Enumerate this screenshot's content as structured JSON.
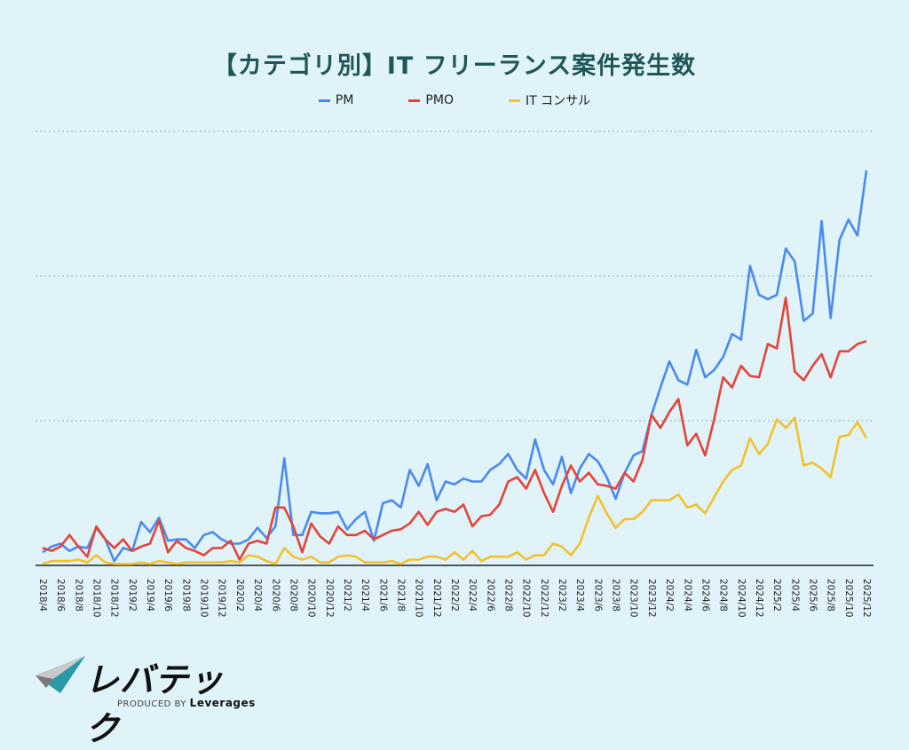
{
  "chart_data": {
    "type": "line",
    "title": "【カテゴリ別】IT フリーランス案件発生数",
    "xlabel": "",
    "ylabel": "",
    "ylim": [
      0,
      3
    ],
    "grid": true,
    "legend_position": "top-center",
    "x_tick_labels": [
      "2018/4",
      "2018/6",
      "2018/8",
      "2018/10",
      "2018/12",
      "2019/2",
      "2019/4",
      "2019/6",
      "2019/8",
      "2019/10",
      "2019/12",
      "2020/2",
      "2020/4",
      "2020/6",
      "2020/8",
      "2020/10",
      "2020/12",
      "2021/2",
      "2021/4",
      "2021/6",
      "2021/8",
      "2021/10",
      "2021/12",
      "2022/2",
      "2022/4",
      "2022/6",
      "2022/8",
      "2022/10",
      "2022/12",
      "2023/2",
      "2023/4",
      "2023/6",
      "2023/8",
      "2023/10",
      "2023/12",
      "2024/2",
      "2024/4",
      "2024/6",
      "2024/8",
      "2024/10",
      "2024/12",
      "2025/2",
      "2025/4",
      "2025/6",
      "2025/8",
      "2025/10",
      "2025/12"
    ],
    "series": [
      {
        "name": "PM",
        "color": "#4a8af0",
        "values": [
          0.09,
          0.13,
          0.15,
          0.1,
          0.13,
          0.12,
          0.26,
          0.18,
          0.03,
          0.12,
          0.1,
          0.3,
          0.23,
          0.33,
          0.17,
          0.18,
          0.18,
          0.12,
          0.21,
          0.23,
          0.18,
          0.15,
          0.15,
          0.18,
          0.26,
          0.19,
          0.27,
          0.74,
          0.21,
          0.21,
          0.37,
          0.36,
          0.36,
          0.37,
          0.25,
          0.32,
          0.37,
          0.17,
          0.43,
          0.45,
          0.4,
          0.66,
          0.55,
          0.7,
          0.45,
          0.58,
          0.56,
          0.6,
          0.58,
          0.58,
          0.66,
          0.7,
          0.77,
          0.66,
          0.6,
          0.87,
          0.66,
          0.56,
          0.75,
          0.5,
          0.67,
          0.77,
          0.72,
          0.61,
          0.46,
          0.64,
          0.76,
          0.79,
          1.04,
          1.23,
          1.41,
          1.28,
          1.25,
          1.49,
          1.3,
          1.35,
          1.44,
          1.6,
          1.56,
          2.07,
          1.87,
          1.84,
          1.87,
          2.19,
          2.1,
          1.69,
          1.74,
          2.38,
          1.71,
          2.25,
          2.39,
          2.28,
          2.73
        ]
      },
      {
        "name": "PMO",
        "color": "#e5443a",
        "values": [
          0.12,
          0.1,
          0.13,
          0.21,
          0.13,
          0.06,
          0.27,
          0.18,
          0.12,
          0.18,
          0.1,
          0.13,
          0.15,
          0.31,
          0.09,
          0.17,
          0.12,
          0.1,
          0.07,
          0.12,
          0.12,
          0.17,
          0.04,
          0.15,
          0.17,
          0.15,
          0.4,
          0.4,
          0.27,
          0.09,
          0.29,
          0.2,
          0.15,
          0.27,
          0.21,
          0.21,
          0.24,
          0.18,
          0.21,
          0.24,
          0.25,
          0.29,
          0.37,
          0.28,
          0.37,
          0.39,
          0.37,
          0.42,
          0.27,
          0.34,
          0.35,
          0.42,
          0.58,
          0.61,
          0.53,
          0.66,
          0.5,
          0.37,
          0.55,
          0.69,
          0.58,
          0.64,
          0.56,
          0.55,
          0.53,
          0.64,
          0.58,
          0.73,
          1.04,
          0.95,
          1.06,
          1.15,
          0.83,
          0.91,
          0.76,
          1.01,
          1.3,
          1.23,
          1.38,
          1.31,
          1.3,
          1.53,
          1.5,
          1.85,
          1.34,
          1.28,
          1.38,
          1.46,
          1.3,
          1.48,
          1.48,
          1.53,
          1.55
        ]
      },
      {
        "name": "IT コンサル",
        "color": "#f4c12d",
        "values": [
          0.01,
          0.03,
          0.03,
          0.03,
          0.04,
          0.02,
          0.07,
          0.02,
          0.01,
          0.01,
          0.01,
          0.02,
          0.01,
          0.03,
          0.02,
          0.01,
          0.02,
          0.02,
          0.02,
          0.02,
          0.02,
          0.03,
          0.02,
          0.07,
          0.06,
          0.03,
          0.01,
          0.12,
          0.06,
          0.04,
          0.06,
          0.02,
          0.02,
          0.06,
          0.07,
          0.06,
          0.02,
          0.02,
          0.02,
          0.03,
          0.01,
          0.04,
          0.04,
          0.06,
          0.06,
          0.04,
          0.09,
          0.04,
          0.1,
          0.03,
          0.06,
          0.06,
          0.06,
          0.09,
          0.04,
          0.07,
          0.07,
          0.15,
          0.13,
          0.07,
          0.15,
          0.33,
          0.48,
          0.36,
          0.26,
          0.32,
          0.32,
          0.37,
          0.45,
          0.45,
          0.45,
          0.49,
          0.4,
          0.42,
          0.36,
          0.47,
          0.58,
          0.66,
          0.69,
          0.88,
          0.77,
          0.84,
          1.01,
          0.95,
          1.02,
          0.69,
          0.71,
          0.67,
          0.61,
          0.89,
          0.9,
          0.99,
          0.88
        ]
      }
    ]
  },
  "logo": {
    "wordmark": "レバテック",
    "produced_by": "PRODUCED BY",
    "brand": "Leverages"
  }
}
